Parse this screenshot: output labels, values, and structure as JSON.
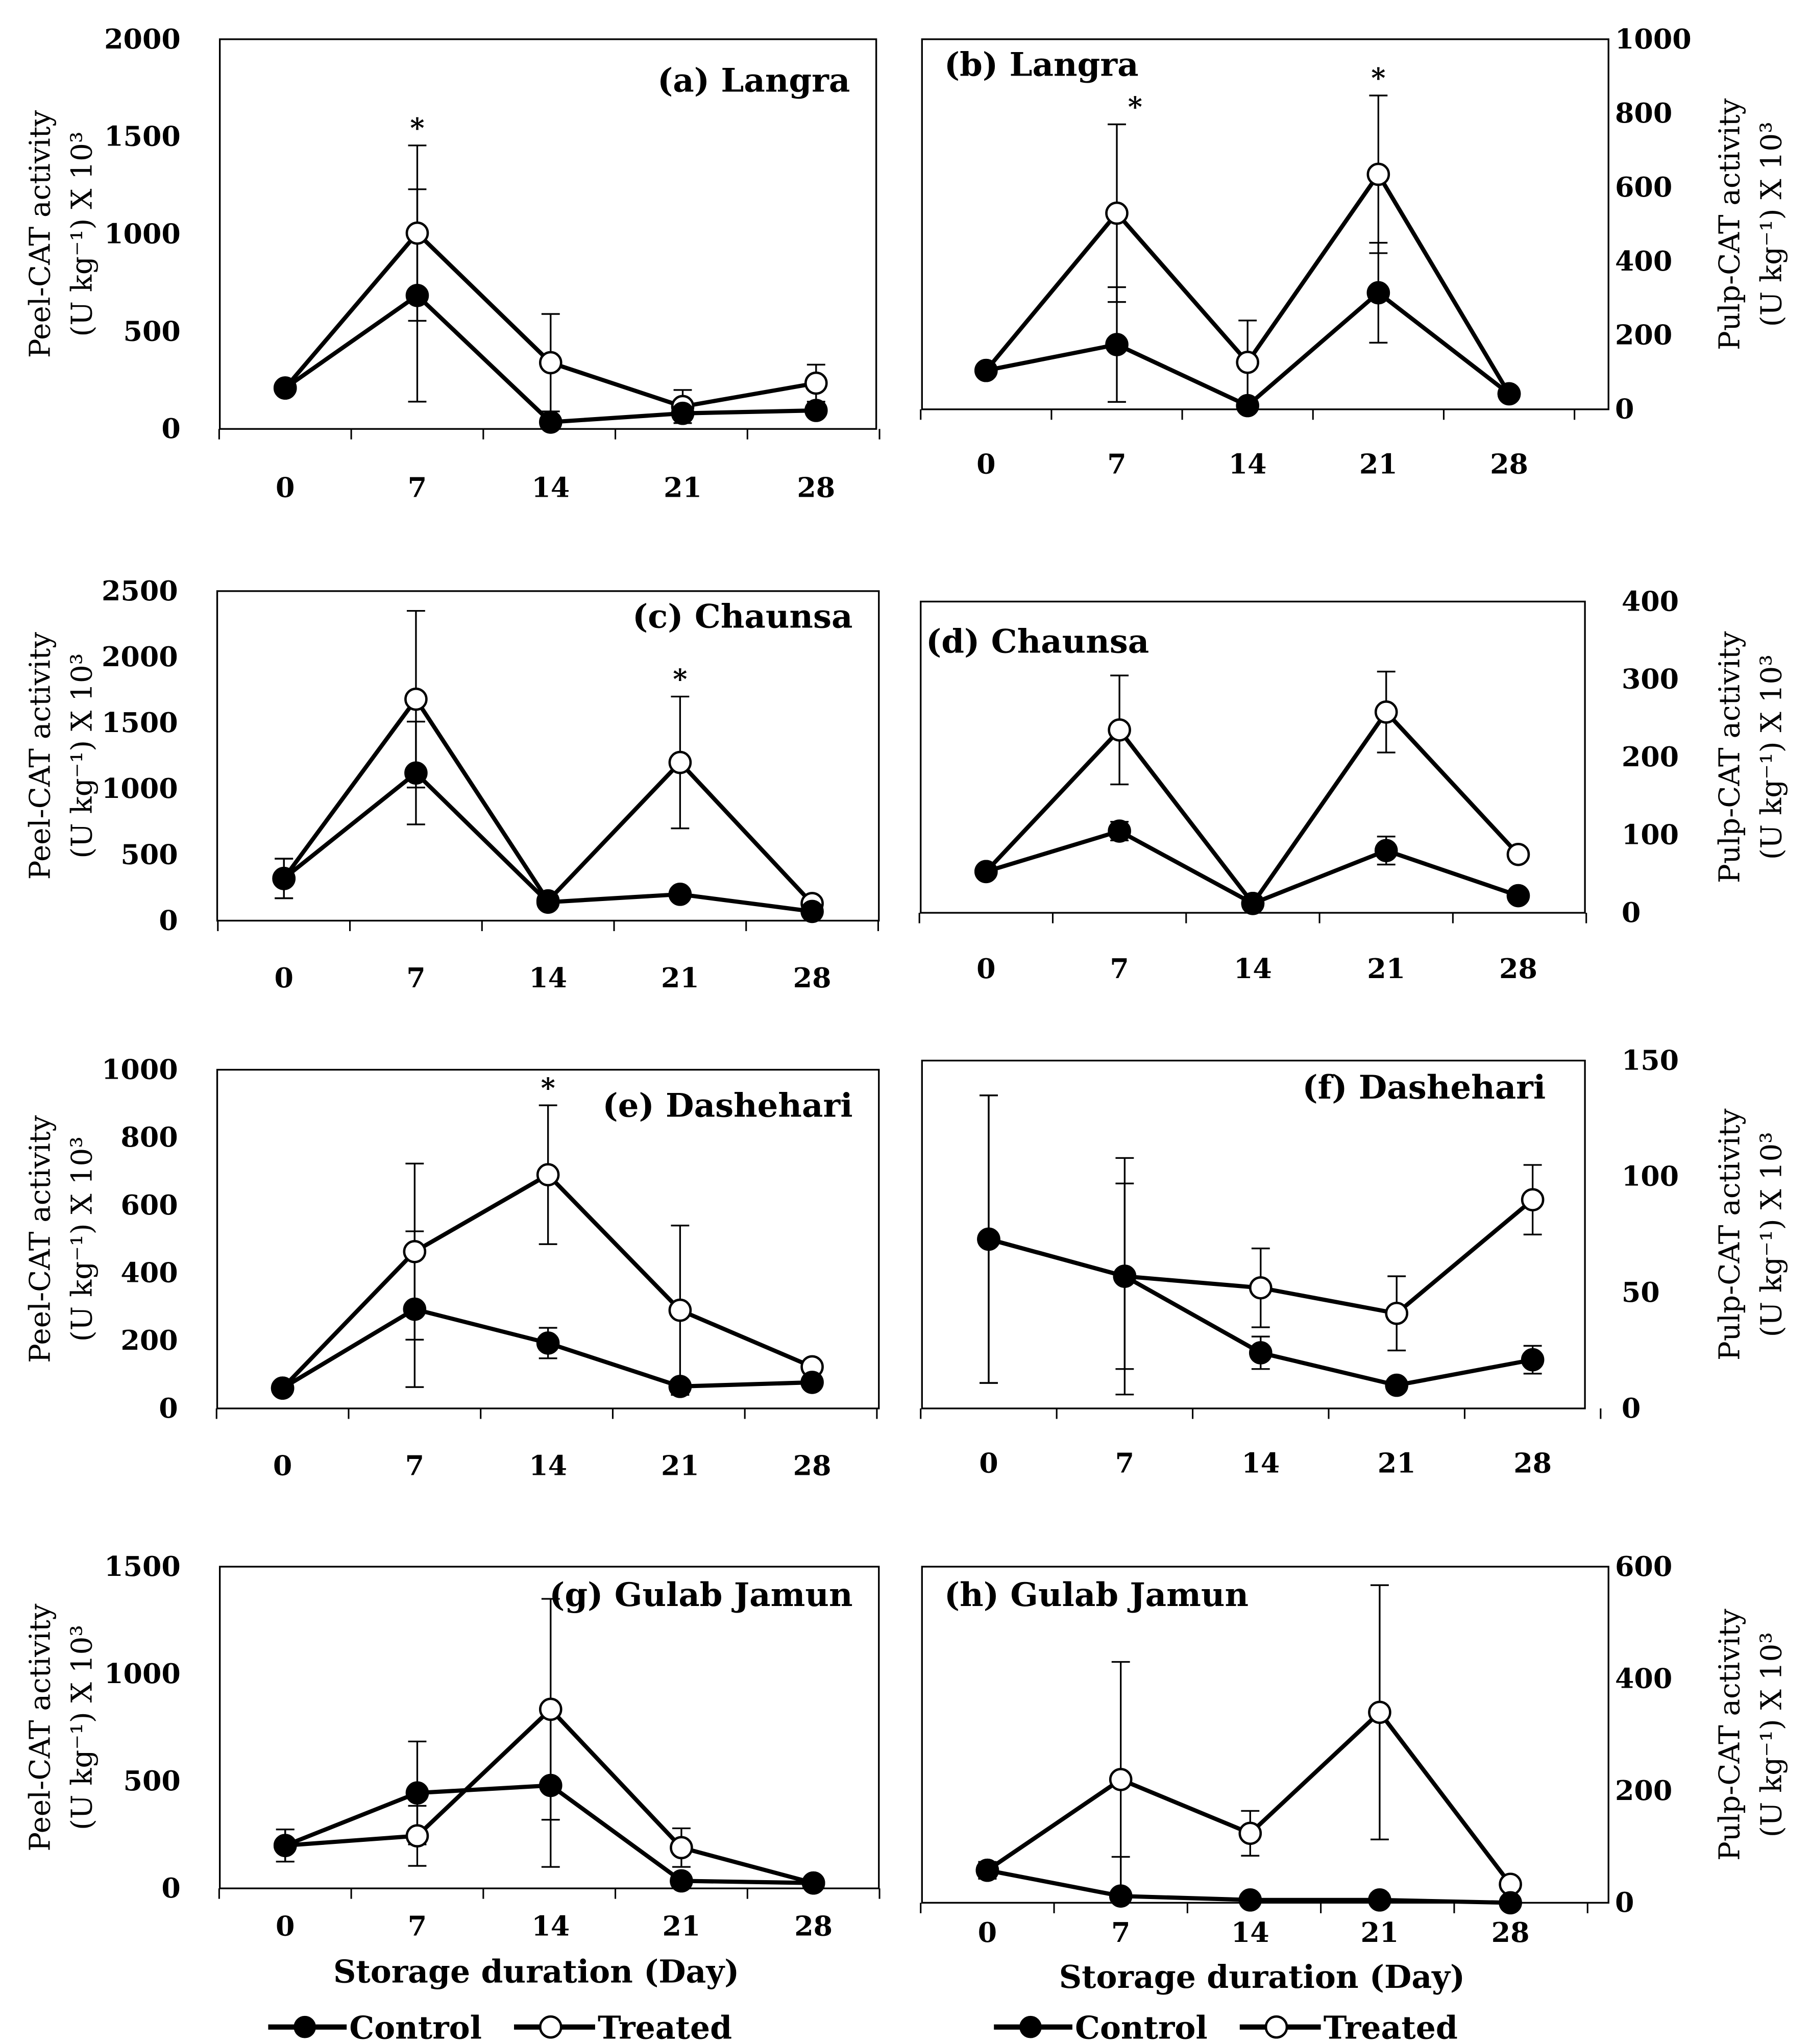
{
  "figure": {
    "xlabel": "Storage duration (Day)",
    "peel_ylabel_1": "Peel-CAT activity",
    "pulp_ylabel_1": "Pulp-CAT activity",
    "ylabel_2": "(U kg⁻¹) X 10³",
    "legend": [
      "Control",
      "Treated"
    ],
    "significance_marker": "*"
  },
  "chart_data": [
    {
      "type": "line",
      "title": "(a) Langra",
      "ylabel": "Peel-CAT activity (U kg-1) X 10^3",
      "xlabel": "Storage duration (Day)",
      "x": [
        0,
        7,
        14,
        21,
        28
      ],
      "ylim": [
        0,
        2000
      ],
      "yticks": [
        0,
        500,
        1000,
        1500,
        2000
      ],
      "axis_side": "left",
      "series": [
        {
          "name": "Control",
          "values": [
            210,
            685,
            35,
            80,
            95
          ],
          "errors": [
            0,
            545,
            0,
            20,
            0
          ]
        },
        {
          "name": "Treated",
          "values": [
            210,
            1005,
            340,
            115,
            235
          ],
          "errors": [
            0,
            450,
            250,
            85,
            95
          ]
        }
      ],
      "significant_at": [
        7
      ]
    },
    {
      "type": "line",
      "title": "(b) Langra",
      "ylabel": "Pulp-CAT activity (U kg-1) X 10^3",
      "xlabel": "Storage duration (Day)",
      "x": [
        0,
        7,
        14,
        21,
        28
      ],
      "ylim": [
        0,
        1000
      ],
      "yticks": [
        0,
        200,
        400,
        600,
        800,
        1000
      ],
      "axis_side": "right",
      "series": [
        {
          "name": "Control",
          "values": [
            105,
            175,
            10,
            315,
            42
          ],
          "errors": [
            0,
            155,
            0,
            135,
            0
          ]
        },
        {
          "name": "Treated",
          "values": [
            105,
            530,
            127,
            635,
            42
          ],
          "errors": [
            0,
            240,
            113,
            213,
            0
          ]
        }
      ],
      "significant_at": [
        7,
        21
      ]
    },
    {
      "type": "line",
      "title": "(c) Chaunsa",
      "ylabel": "Peel-CAT activity (U kg-1) X 10^3",
      "xlabel": "Storage duration (Day)",
      "x": [
        0,
        7,
        14,
        21,
        28
      ],
      "ylim": [
        0,
        2500
      ],
      "yticks": [
        0,
        500,
        1000,
        1500,
        2000,
        2500
      ],
      "axis_side": "left",
      "series": [
        {
          "name": "Control",
          "values": [
            320,
            1120,
            140,
            200,
            70
          ],
          "errors": [
            150,
            390,
            0,
            40,
            0
          ]
        },
        {
          "name": "Treated",
          "values": [
            320,
            1680,
            150,
            1200,
            130
          ],
          "errors": [
            150,
            670,
            0,
            500,
            0
          ]
        }
      ],
      "significant_at": [
        21
      ]
    },
    {
      "type": "line",
      "title": "(d) Chaunsa",
      "ylabel": "Pulp-CAT activity (U kg-1) X 10^3",
      "xlabel": "Storage duration (Day)",
      "x": [
        0,
        7,
        14,
        21,
        28
      ],
      "ylim": [
        0,
        400
      ],
      "yticks": [
        0,
        100,
        200,
        300,
        400
      ],
      "axis_side": "right",
      "series": [
        {
          "name": "Control",
          "values": [
            53,
            105,
            12,
            80,
            22
          ],
          "errors": [
            0,
            12,
            0,
            18,
            0
          ]
        },
        {
          "name": "Treated",
          "values": [
            53,
            235,
            12,
            258,
            75
          ],
          "errors": [
            0,
            70,
            0,
            52,
            0
          ]
        }
      ],
      "significant_at": []
    },
    {
      "type": "line",
      "title": "(e) Dashehari",
      "ylabel": "Peel-CAT activity (U kg-1) X 10^3",
      "xlabel": "Storage duration (Day)",
      "x": [
        0,
        7,
        14,
        21,
        28
      ],
      "ylim": [
        0,
        1000
      ],
      "yticks": [
        0,
        200,
        400,
        600,
        800,
        1000
      ],
      "axis_side": "left",
      "series": [
        {
          "name": "Control",
          "values": [
            60,
            293,
            193,
            65,
            77
          ],
          "errors": [
            0,
            230,
            45,
            0,
            0
          ]
        },
        {
          "name": "Treated",
          "values": [
            60,
            463,
            690,
            290,
            123
          ],
          "errors": [
            0,
            260,
            205,
            250,
            0
          ]
        }
      ],
      "significant_at": [
        14
      ]
    },
    {
      "type": "line",
      "title": "(f) Dashehari",
      "ylabel": "Pulp-CAT activity (U kg-1) X 10^3",
      "xlabel": "Storage duration (Day)",
      "x": [
        0,
        7,
        14,
        21,
        28
      ],
      "ylim": [
        0,
        150
      ],
      "yticks": [
        0,
        50,
        100,
        150
      ],
      "axis_side": "right",
      "series": [
        {
          "name": "Control",
          "values": [
            73,
            57,
            24,
            10,
            21
          ],
          "errors": [
            62,
            40,
            7,
            0,
            6
          ]
        },
        {
          "name": "Treated",
          "values": [
            73,
            57,
            52,
            41,
            90
          ],
          "errors": [
            62,
            51,
            17,
            16,
            15
          ]
        }
      ],
      "significant_at": []
    },
    {
      "type": "line",
      "title": "(g) Gulab Jamun",
      "ylabel": "Peel-CAT activity (U kg-1) X 10^3",
      "xlabel": "Storage duration (Day)",
      "x": [
        0,
        7,
        14,
        21,
        28
      ],
      "ylim": [
        0,
        1500
      ],
      "yticks": [
        0,
        500,
        1000,
        1500
      ],
      "axis_side": "left",
      "series": [
        {
          "name": "Control",
          "values": [
            200,
            445,
            480,
            35,
            25
          ],
          "errors": [
            75,
            240,
            380,
            0,
            0
          ]
        },
        {
          "name": "Treated",
          "values": [
            200,
            245,
            835,
            190,
            25
          ],
          "errors": [
            75,
            140,
            515,
            90,
            0
          ]
        }
      ],
      "significant_at": []
    },
    {
      "type": "line",
      "title": "(h) Gulab Jamun",
      "ylabel": "Pulp-CAT activity (U kg-1) X 10^3",
      "xlabel": "Storage duration (Day)",
      "x": [
        0,
        7,
        14,
        21,
        28
      ],
      "ylim": [
        0,
        600
      ],
      "yticks": [
        0,
        200,
        400,
        600
      ],
      "axis_side": "right",
      "series": [
        {
          "name": "Control",
          "values": [
            58,
            12,
            5,
            5,
            0
          ],
          "errors": [
            15,
            70,
            0,
            12,
            0
          ]
        },
        {
          "name": "Treated",
          "values": [
            58,
            220,
            124,
            340,
            33
          ],
          "errors": [
            15,
            210,
            40,
            227,
            10
          ]
        }
      ],
      "significant_at": []
    }
  ]
}
